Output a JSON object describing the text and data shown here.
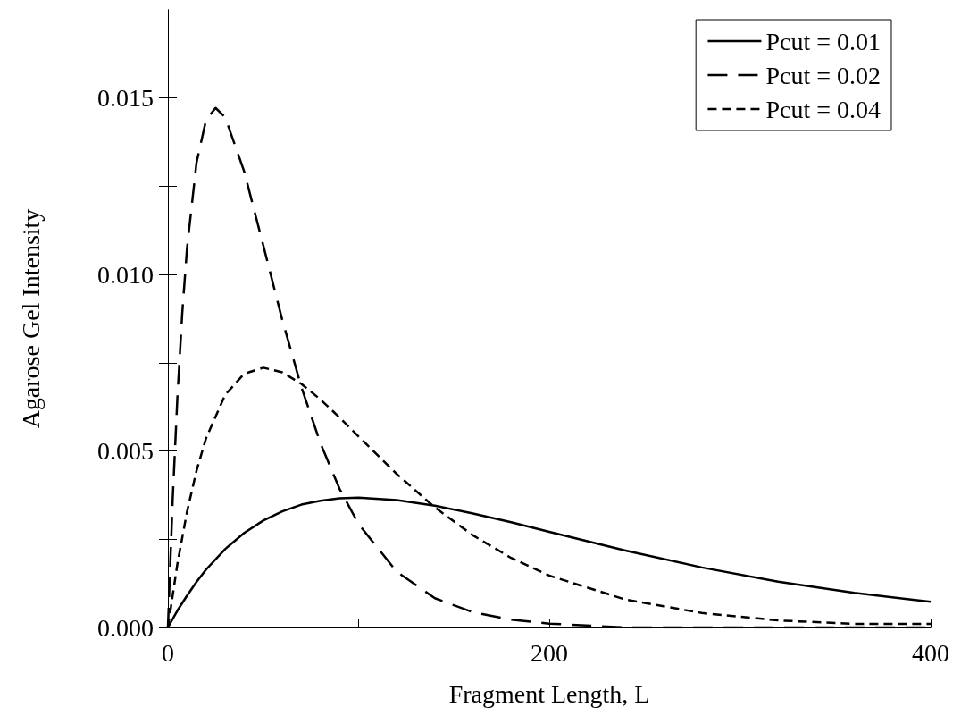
{
  "chart_data": {
    "type": "line",
    "xlabel": "Fragment Length, L",
    "ylabel": "Agarose Gel Intensity",
    "xlim": [
      0,
      400
    ],
    "xticks": [
      0,
      {
        "value": 100,
        "label": null
      },
      200,
      {
        "value": 300,
        "label": null
      },
      400
    ],
    "ylim": [
      0,
      0.0175
    ],
    "yticks": [
      "0.000",
      {
        "value": 0.0025,
        "label": null
      },
      {
        "value": 0.005,
        "label": "0.005"
      },
      {
        "value": 0.0075,
        "label": null
      },
      {
        "value": 0.01,
        "label": "0.010"
      },
      {
        "value": 0.0125,
        "label": null
      },
      {
        "value": 0.015,
        "label": "0.015"
      }
    ],
    "legend": "top right",
    "grid": false,
    "marker": "none",
    "series": [
      {
        "name": "Pcut = 0.01",
        "color": "#000000",
        "line_style": "solid",
        "x": [
          0,
          5,
          10,
          15,
          20,
          30,
          40,
          50,
          60,
          70,
          80,
          90,
          100,
          120,
          140,
          160,
          180,
          200,
          240,
          280,
          320,
          360,
          400
        ],
        "values": [
          0,
          0.00048,
          0.0009,
          0.00129,
          0.00164,
          0.00222,
          0.00268,
          0.00303,
          0.00329,
          0.00348,
          0.00359,
          0.00366,
          0.00368,
          0.00361,
          0.00345,
          0.00323,
          0.00298,
          0.00271,
          0.00218,
          0.0017,
          0.0013,
          0.00098,
          0.00073
        ]
      },
      {
        "name": "Pcut = 0.02",
        "color": "#000000",
        "line_style": "dashed",
        "x": [
          0,
          2.5,
          5,
          7.5,
          10,
          15,
          20,
          25,
          30,
          40,
          50,
          60,
          70,
          80,
          90,
          100,
          120,
          140,
          160,
          180,
          200,
          240,
          280,
          320,
          400
        ],
        "values": [
          0,
          0.00362,
          0.00655,
          0.00889,
          0.01073,
          0.01317,
          0.01438,
          0.01472,
          0.01446,
          0.01292,
          0.01083,
          0.00871,
          0.00681,
          0.00522,
          0.00393,
          0.00293,
          0.00158,
          0.00083,
          0.00043,
          0.00022,
          0.00011,
          0,
          0,
          0,
          0
        ]
      },
      {
        "name": "Pcut = 0.04",
        "color": "#000000",
        "line_style": "dotted",
        "x": [
          0,
          5,
          10,
          15,
          20,
          30,
          40,
          50,
          60,
          70,
          80,
          90,
          100,
          120,
          140,
          160,
          180,
          200,
          240,
          280,
          320,
          360,
          400
        ],
        "values": [
          0,
          0.00181,
          0.00327,
          0.00444,
          0.00536,
          0.00659,
          0.00719,
          0.00736,
          0.00723,
          0.0069,
          0.00646,
          0.00595,
          0.00541,
          0.00435,
          0.0034,
          0.00261,
          0.00197,
          0.00147,
          0.00079,
          0.00041,
          0.0002,
          0.0001,
          0.0001
        ]
      }
    ]
  }
}
